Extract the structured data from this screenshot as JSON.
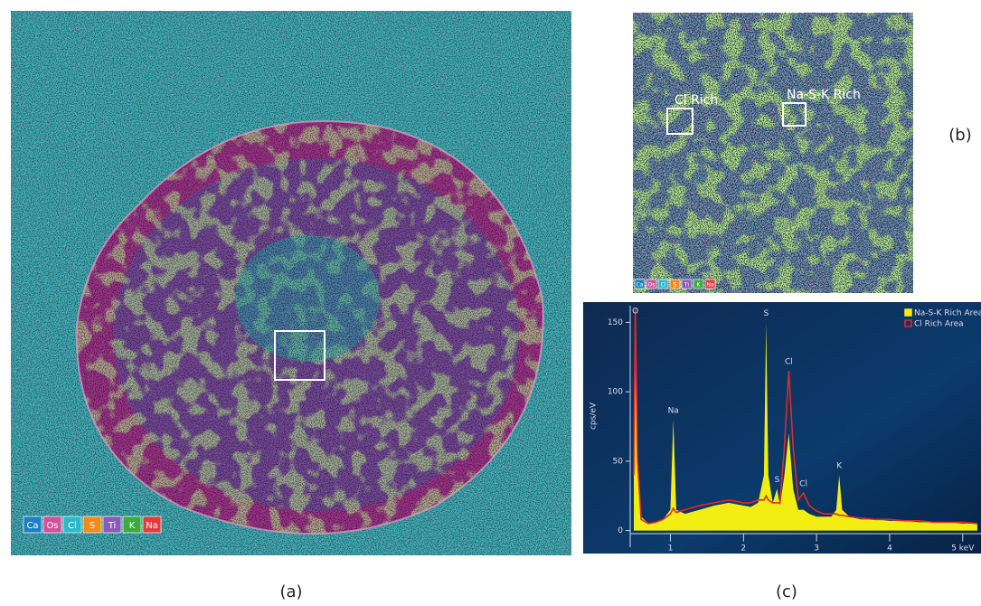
{
  "panels": {
    "a": {
      "label": "(a)",
      "legend": [
        {
          "text": "Ca",
          "color": "#1f7fc4"
        },
        {
          "text": "Os",
          "color": "#d2509a"
        },
        {
          "text": "Cl",
          "color": "#2fb8c8"
        },
        {
          "text": "S",
          "color": "#f08a1c"
        },
        {
          "text": "Ti",
          "color": "#8a5bb5"
        },
        {
          "text": "K",
          "color": "#3caa3c"
        },
        {
          "text": "Na",
          "color": "#e33b3b"
        }
      ]
    },
    "b": {
      "label": "(b)",
      "regions": [
        "Cl Rich",
        "Na-S-K Rich"
      ]
    },
    "c": {
      "label": "(c)"
    }
  },
  "chart_data": {
    "type": "area",
    "ylabel": "cps/eV",
    "x": [
      0.5,
      0.52,
      0.55,
      0.6,
      0.7,
      0.8,
      0.9,
      1.0,
      1.04,
      1.08,
      1.2,
      1.4,
      1.6,
      1.8,
      2.0,
      2.1,
      2.2,
      2.28,
      2.31,
      2.34,
      2.4,
      2.46,
      2.5,
      2.56,
      2.62,
      2.68,
      2.75,
      2.82,
      2.9,
      3.0,
      3.1,
      3.2,
      3.27,
      3.31,
      3.35,
      3.45,
      3.6,
      3.8,
      4.0,
      4.2,
      4.4,
      4.6,
      4.8,
      5.0,
      5.2
    ],
    "series": [
      {
        "name": "Na-S-K Rich Area",
        "color": "#f2ee12",
        "style": "area",
        "values": [
          40,
          160,
          60,
          10,
          5,
          6,
          8,
          15,
          80,
          15,
          12,
          15,
          18,
          20,
          18,
          17,
          20,
          40,
          150,
          40,
          20,
          30,
          18,
          40,
          70,
          30,
          15,
          15,
          12,
          10,
          10,
          10,
          15,
          40,
          15,
          10,
          8,
          8,
          7,
          7,
          6,
          6,
          6,
          5,
          5
        ]
      },
      {
        "name": "Cl Rich Area",
        "color": "#e02a2a",
        "style": "line",
        "values": [
          40,
          160,
          50,
          8,
          5,
          6,
          8,
          12,
          16,
          13,
          15,
          18,
          20,
          22,
          20,
          20,
          22,
          22,
          25,
          22,
          20,
          20,
          20,
          60,
          115,
          60,
          22,
          27,
          18,
          14,
          12,
          12,
          12,
          11,
          11,
          10,
          9,
          8,
          8,
          7,
          7,
          6,
          6,
          6,
          5
        ]
      }
    ],
    "annotations": [
      {
        "text": "O",
        "x": 0.52
      },
      {
        "text": "Na",
        "x": 1.04
      },
      {
        "text": "S",
        "x": 2.31
      },
      {
        "text": "S",
        "x": 2.46
      },
      {
        "text": "Cl",
        "x": 2.62
      },
      {
        "text": "Cl",
        "x": 2.82
      },
      {
        "text": "K",
        "x": 3.31
      }
    ],
    "xlim": [
      0.45,
      5.25
    ],
    "ylim": [
      -12,
      162
    ],
    "xticks": [
      1,
      2,
      3,
      4,
      {
        "value": 5,
        "label": "5 keV"
      }
    ],
    "yticks": [
      0,
      50,
      100,
      150
    ],
    "legend": "upper right"
  }
}
